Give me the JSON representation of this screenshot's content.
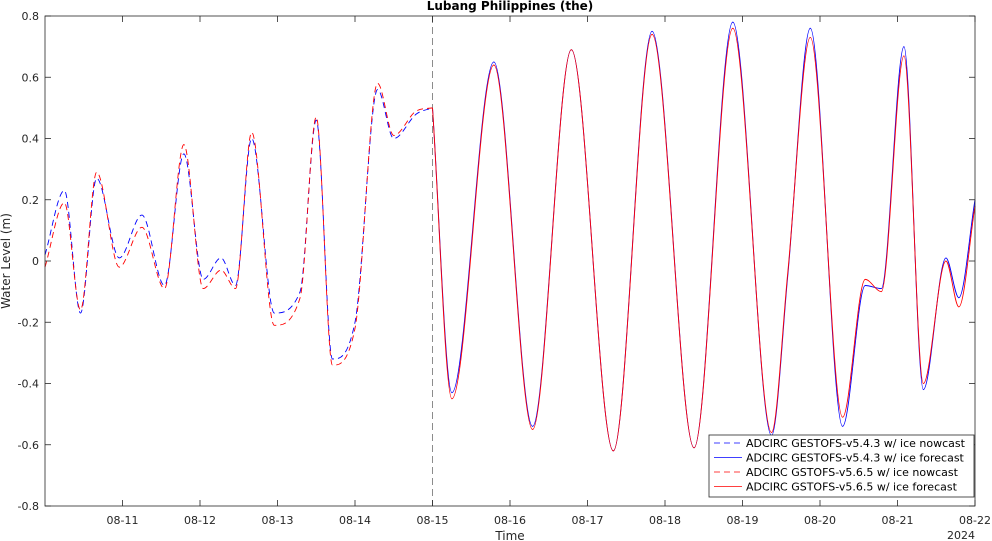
{
  "chart_data": {
    "type": "line",
    "title": "Lubang Philippines (the)",
    "xlabel": "Time",
    "ylabel": "Water Level (m)",
    "year_label": "2024",
    "xlim": [
      "2024-08-10",
      "2024-08-22"
    ],
    "ylim": [
      -0.8,
      0.8
    ],
    "x_ticks": [
      "08-11",
      "08-12",
      "08-13",
      "08-14",
      "08-15",
      "08-16",
      "08-17",
      "08-18",
      "08-19",
      "08-20",
      "08-21",
      "08-22"
    ],
    "y_ticks": [
      -0.8,
      -0.6,
      -0.4,
      -0.2,
      0,
      0.2,
      0.4,
      0.6,
      0.8
    ],
    "y_tick_labels": [
      "-0.8",
      "-0.6",
      "-0.4",
      "-0.2",
      "0",
      "0.2",
      "0.4",
      "0.6",
      "0.8"
    ],
    "vline_x": "2024-08-15 00:00",
    "grid": false,
    "legend_position": "bottom-right",
    "series": [
      {
        "name": "ADCIRC GESTOFS-v5.4.3 w/ ice nowcast",
        "color": "#0000ff",
        "dash": "dashed",
        "x": [
          "2024-08-10 00:00",
          "2024-08-10 06:00",
          "2024-08-10 11:00",
          "2024-08-10 16:00",
          "2024-08-10 23:00",
          "2024-08-11 06:00",
          "2024-08-11 13:00",
          "2024-08-11 19:00",
          "2024-08-12 01:00",
          "2024-08-12 06:30",
          "2024-08-12 11:00",
          "2024-08-12 16:00",
          "2024-08-12 23:00",
          "2024-08-13 07:00",
          "2024-08-13 12:00",
          "2024-08-13 17:00",
          "2024-08-14 00:00",
          "2024-08-14 07:00",
          "2024-08-14 12:00",
          "2024-08-14 19:00",
          "2024-08-15 00:00"
        ],
        "y": [
          0.02,
          0.23,
          -0.17,
          0.27,
          0.01,
          0.15,
          -0.08,
          0.35,
          -0.06,
          0.01,
          -0.08,
          0.4,
          -0.17,
          -0.1,
          0.46,
          -0.32,
          -0.2,
          0.56,
          0.4,
          0.48,
          0.5
        ]
      },
      {
        "name": "ADCIRC GESTOFS-v5.4.3 w/ ice forecast",
        "color": "#0000ff",
        "dash": "solid",
        "x": [
          "2024-08-15 00:00",
          "2024-08-15 06:00",
          "2024-08-15 19:00",
          "2024-08-16 07:00",
          "2024-08-16 19:00",
          "2024-08-17 08:00",
          "2024-08-17 20:00",
          "2024-08-18 09:00",
          "2024-08-18 21:00",
          "2024-08-19 09:00",
          "2024-08-19 14:00",
          "2024-08-19 21:00",
          "2024-08-20 07:00",
          "2024-08-20 14:00",
          "2024-08-20 19:00",
          "2024-08-21 02:00",
          "2024-08-21 08:00",
          "2024-08-21 15:00",
          "2024-08-21 19:00",
          "2024-08-22 00:00"
        ],
        "y": [
          0.5,
          -0.43,
          0.65,
          -0.54,
          0.69,
          -0.62,
          0.75,
          -0.61,
          0.78,
          -0.57,
          -0.05,
          0.76,
          -0.54,
          -0.08,
          -0.09,
          0.7,
          -0.42,
          0.01,
          -0.12,
          0.2
        ]
      },
      {
        "name": "ADCIRC GSTOFS-v5.6.5 w/ ice nowcast",
        "color": "#ff0000",
        "dash": "dashed",
        "x": [
          "2024-08-10 00:00",
          "2024-08-10 06:00",
          "2024-08-10 11:00",
          "2024-08-10 16:00",
          "2024-08-10 23:00",
          "2024-08-11 06:00",
          "2024-08-11 13:00",
          "2024-08-11 19:00",
          "2024-08-12 01:00",
          "2024-08-12 06:30",
          "2024-08-12 11:00",
          "2024-08-12 16:00",
          "2024-08-12 23:00",
          "2024-08-13 07:00",
          "2024-08-13 12:00",
          "2024-08-13 17:00",
          "2024-08-14 00:00",
          "2024-08-14 07:00",
          "2024-08-14 12:00",
          "2024-08-14 19:00",
          "2024-08-15 00:00"
        ],
        "y": [
          -0.02,
          0.19,
          -0.16,
          0.29,
          -0.02,
          0.11,
          -0.09,
          0.38,
          -0.09,
          -0.03,
          -0.09,
          0.42,
          -0.21,
          -0.12,
          0.47,
          -0.34,
          -0.22,
          0.58,
          0.41,
          0.49,
          0.5
        ]
      },
      {
        "name": "ADCIRC GSTOFS-v5.6.5 w/ ice forecast",
        "color": "#ff0000",
        "dash": "solid",
        "x": [
          "2024-08-15 00:00",
          "2024-08-15 06:00",
          "2024-08-15 19:00",
          "2024-08-16 07:00",
          "2024-08-16 19:00",
          "2024-08-17 08:00",
          "2024-08-17 20:00",
          "2024-08-18 09:00",
          "2024-08-18 21:00",
          "2024-08-19 09:00",
          "2024-08-19 14:00",
          "2024-08-19 21:00",
          "2024-08-20 07:00",
          "2024-08-20 14:00",
          "2024-08-20 19:00",
          "2024-08-21 02:00",
          "2024-08-21 08:00",
          "2024-08-21 15:00",
          "2024-08-21 19:00",
          "2024-08-22 00:00"
        ],
        "y": [
          0.5,
          -0.45,
          0.64,
          -0.55,
          0.69,
          -0.62,
          0.74,
          -0.61,
          0.76,
          -0.56,
          -0.04,
          0.73,
          -0.51,
          -0.06,
          -0.1,
          0.67,
          -0.4,
          0.0,
          -0.15,
          0.18
        ]
      }
    ]
  }
}
